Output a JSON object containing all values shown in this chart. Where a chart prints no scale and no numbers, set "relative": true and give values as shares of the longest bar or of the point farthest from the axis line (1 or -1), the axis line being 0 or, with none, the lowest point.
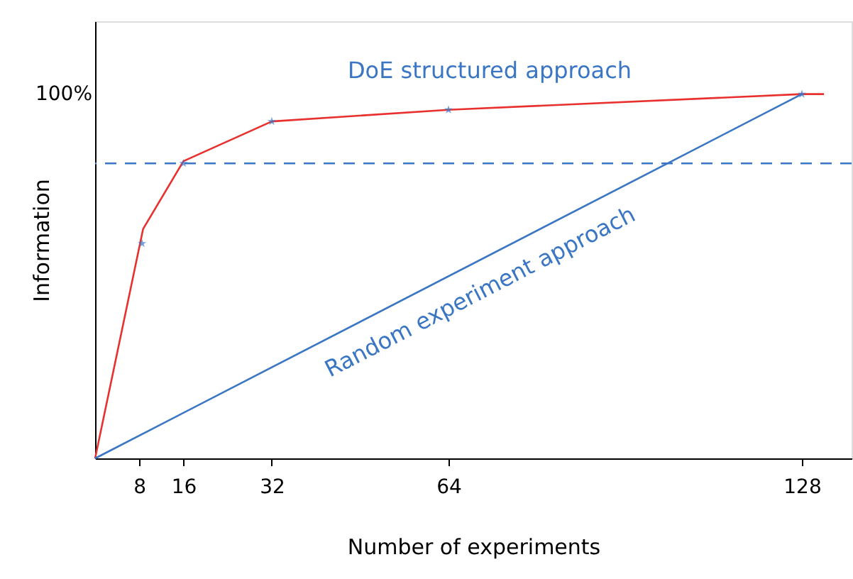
{
  "chart_data": {
    "type": "line",
    "relative": true,
    "xlabel": "Number of experiments",
    "ylabel": "Information",
    "xlim": [
      0,
      137
    ],
    "xticks": [
      8,
      16,
      32,
      64,
      128
    ],
    "series": [
      {
        "color": "#e8312f",
        "x": [
          0,
          8.7,
          16,
          32,
          64,
          128,
          132
        ],
        "values": [
          0,
          0.63,
          0.816,
          0.925,
          0.957,
          1.0,
          1.0
        ]
      },
      {
        "type": "scatter",
        "marker": "star",
        "color": "#3a76c4",
        "x": [
          8.5,
          16,
          32,
          64,
          128
        ],
        "values": [
          0.59,
          0.81,
          0.925,
          0.957,
          1.0
        ]
      },
      {
        "color": "#3a76c4",
        "x": [
          0,
          128
        ],
        "values": [
          0,
          1.0
        ]
      }
    ],
    "ref_lines": [
      {
        "axis": "y",
        "value": 0.81,
        "color": "#3a76c4",
        "line_style": "dashed"
      }
    ],
    "annotations": [
      "DoE structured approach",
      "Random experiment approach",
      "100%"
    ]
  }
}
